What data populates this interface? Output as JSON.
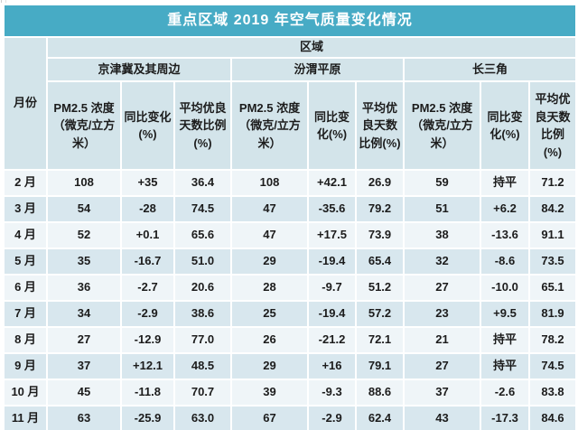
{
  "title": "重点区域 2019 年空气质量变化情况",
  "headers": {
    "month": "月份",
    "region": "区域",
    "groups": [
      "京津冀及其周边",
      "汾渭平原",
      "长三角"
    ],
    "sub": [
      "PM2.5 浓度（微克/立方米）",
      "同比变化(%)",
      "平均优良天数比例(%)"
    ]
  },
  "colors": {
    "title_bar": "#47abc5",
    "header_bg": "#d3e4ea",
    "row_light": "#eff5f8",
    "row_alt": "#d8e7ee",
    "border": "#ffffff",
    "title_text": "#ffffff",
    "body_text": "#1c1c1c"
  },
  "rows": [
    {
      "month": "2 月",
      "cells": [
        "108",
        "+35",
        "36.4",
        "108",
        "+42.1",
        "26.9",
        "59",
        "持平",
        "71.2"
      ]
    },
    {
      "month": "3 月",
      "cells": [
        "54",
        "-28",
        "74.5",
        "47",
        "-35.6",
        "79.2",
        "51",
        "+6.2",
        "84.2"
      ]
    },
    {
      "month": "4 月",
      "cells": [
        "52",
        "+0.1",
        "65.6",
        "47",
        "+17.5",
        "73.9",
        "38",
        "-13.6",
        "91.1"
      ]
    },
    {
      "month": "5 月",
      "cells": [
        "35",
        "-16.7",
        "51.0",
        "29",
        "-19.4",
        "65.4",
        "32",
        "-8.6",
        "73.5"
      ]
    },
    {
      "month": "6 月",
      "cells": [
        "36",
        "-2.7",
        "20.6",
        "28",
        "-9.7",
        "51.2",
        "27",
        "-10.0",
        "65.1"
      ]
    },
    {
      "month": "7 月",
      "cells": [
        "34",
        "-2.9",
        "38.6",
        "25",
        "-19.4",
        "57.2",
        "23",
        "+9.5",
        "81.9"
      ]
    },
    {
      "month": "8 月",
      "cells": [
        "27",
        "-12.9",
        "77.0",
        "26",
        "-21.2",
        "72.1",
        "21",
        "持平",
        "78.2"
      ]
    },
    {
      "month": "9 月",
      "cells": [
        "37",
        "+12.1",
        "48.5",
        "29",
        "+16",
        "79.1",
        "27",
        "持平",
        "74.5"
      ]
    },
    {
      "month": "10 月",
      "cells": [
        "45",
        "-11.8",
        "70.7",
        "39",
        "-9.3",
        "88.6",
        "37",
        "-2.6",
        "83.8"
      ]
    },
    {
      "month": "11 月",
      "cells": [
        "63",
        "-25.9",
        "63.0",
        "67",
        "-2.9",
        "62.4",
        "43",
        "-17.3",
        "84.6"
      ]
    }
  ],
  "chart_data": {
    "type": "table",
    "title": "重点区域 2019 年空气质量变化情况",
    "row_header": "月份",
    "group_header": "区域",
    "column_groups": [
      "京津冀及其周边",
      "汾渭平原",
      "长三角"
    ],
    "columns_per_group": [
      "PM2.5 浓度（微克/立方米）",
      "同比变化(%)",
      "平均优良天数比例(%)"
    ],
    "months": [
      "2月",
      "3月",
      "4月",
      "5月",
      "6月",
      "7月",
      "8月",
      "9月",
      "10月",
      "11月"
    ],
    "series": [
      {
        "region": "京津冀及其周边",
        "pm25": [
          108,
          54,
          52,
          35,
          36,
          34,
          27,
          37,
          45,
          63
        ],
        "yoy_change_pct": [
          "+35",
          "-28",
          "+0.1",
          "-16.7",
          "-2.7",
          "-2.9",
          "-12.9",
          "+12.1",
          "-11.8",
          "-25.9"
        ],
        "good_days_pct": [
          36.4,
          74.5,
          65.6,
          51.0,
          20.6,
          38.6,
          77.0,
          48.5,
          70.7,
          63.0
        ]
      },
      {
        "region": "汾渭平原",
        "pm25": [
          108,
          47,
          47,
          29,
          28,
          25,
          26,
          29,
          39,
          67
        ],
        "yoy_change_pct": [
          "+42.1",
          "-35.6",
          "+17.5",
          "-19.4",
          "-9.7",
          "-19.4",
          "-21.2",
          "+16",
          "-9.3",
          "-2.9"
        ],
        "good_days_pct": [
          26.9,
          79.2,
          73.9,
          65.4,
          51.2,
          57.2,
          72.1,
          79.1,
          88.6,
          62.4
        ]
      },
      {
        "region": "长三角",
        "pm25": [
          59,
          51,
          38,
          32,
          27,
          23,
          21,
          27,
          37,
          43
        ],
        "yoy_change_pct": [
          "持平",
          "+6.2",
          "-13.6",
          "-8.6",
          "-10.0",
          "+9.5",
          "持平",
          "持平",
          "-2.6",
          "-17.3"
        ],
        "good_days_pct": [
          71.2,
          84.2,
          91.1,
          73.5,
          65.1,
          81.9,
          78.2,
          74.5,
          83.8,
          84.6
        ]
      }
    ]
  }
}
